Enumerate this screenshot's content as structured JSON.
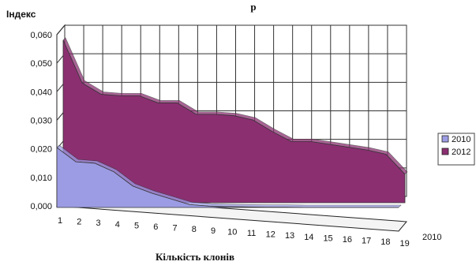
{
  "chart_data": {
    "type": "area",
    "title_fragment": "р",
    "ylabel": "Індекс",
    "xlabel": "Кількість клонів",
    "y_ticks": [
      "0,000",
      "0,010",
      "0,020",
      "0,030",
      "0,040",
      "0,050",
      "0,060"
    ],
    "ylim": [
      0,
      0.06
    ],
    "categories": [
      "1",
      "2",
      "3",
      "4",
      "5",
      "6",
      "7",
      "8",
      "9",
      "10",
      "11",
      "12",
      "13",
      "14",
      "15",
      "16",
      "17",
      "18",
      "19"
    ],
    "series": [
      {
        "name": "2010",
        "color": "#9c9ce4",
        "values": [
          0.021,
          0.016,
          0.0155,
          0.0125,
          0.0075,
          0.005,
          0.003,
          0.001,
          0.0005,
          0.0003,
          0.0002,
          0.0001,
          0.0001,
          0,
          0,
          0,
          0,
          0,
          0
        ]
      },
      {
        "name": "2012",
        "color": "#8b2f71",
        "values": [
          0.057,
          0.042,
          0.038,
          0.0375,
          0.0375,
          0.035,
          0.035,
          0.031,
          0.031,
          0.0305,
          0.029,
          0.025,
          0.0215,
          0.0215,
          0.0205,
          0.0195,
          0.0185,
          0.017,
          0.01
        ]
      }
    ],
    "series_axis_labels": [
      "2010"
    ],
    "legend": [
      "2010",
      "2012"
    ],
    "legend_position": "right",
    "grid": true
  }
}
